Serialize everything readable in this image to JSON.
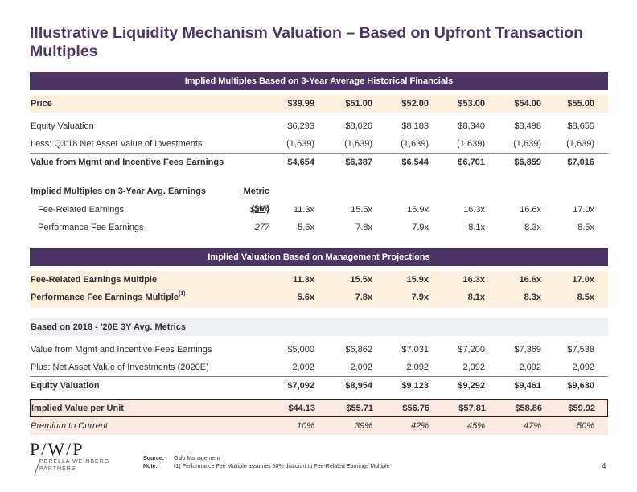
{
  "title": "Illustrative Liquidity Mechanism Valuation – Based on Upfront Transaction Multiples",
  "section1": {
    "band": "Implied Multiples Based on 3-Year Average Historical Financials",
    "price": {
      "label": "Price",
      "values": [
        "$39.99",
        "$51.00",
        "$52.00",
        "$53.00",
        "$54.00",
        "$55.00"
      ]
    },
    "equity": {
      "label": "Equity Valuation",
      "values": [
        "$6,293",
        "$8,026",
        "$8,183",
        "$8,340",
        "$8,498",
        "$8,655"
      ]
    },
    "nav": {
      "label": "Less: Q3'18 Net Asset Value of Investments",
      "values": [
        "(1,639)",
        "(1,639)",
        "(1,639)",
        "(1,639)",
        "(1,639)",
        "(1,639)"
      ]
    },
    "fees": {
      "label": "Value from Mgmt and Incentive Fees Earnings",
      "values": [
        "$4,654",
        "$6,387",
        "$6,544",
        "$6,701",
        "$6,859",
        "$7,016"
      ]
    },
    "multiples_header": {
      "label": "Implied Multiples on 3-Year Avg. Earnings",
      "metric": "Metric ($M)"
    },
    "fre": {
      "label": "Fee-Related Earnings",
      "metric": "$274",
      "values": [
        "11.3x",
        "15.5x",
        "15.9x",
        "16.3x",
        "16.6x",
        "17.0x"
      ]
    },
    "pfe": {
      "label": "Performance Fee Earnings",
      "metric": "277",
      "values": [
        "5.6x",
        "7.8x",
        "7.9x",
        "8.1x",
        "8.3x",
        "8.5x"
      ]
    }
  },
  "section2": {
    "band": "Implied Valuation Based on Management Projections",
    "fre_mult": {
      "label": "Fee-Related Earnings Multiple",
      "values": [
        "11.3x",
        "15.5x",
        "15.9x",
        "16.3x",
        "16.6x",
        "17.0x"
      ]
    },
    "pfe_mult": {
      "label": "Performance Fee Earnings Multiple",
      "sup": "(1)",
      "values": [
        "5.6x",
        "7.8x",
        "7.9x",
        "8.1x",
        "8.3x",
        "8.5x"
      ]
    },
    "basis": {
      "label": "Based on 2018 - '20E 3Y Avg. Metrics"
    },
    "fees": {
      "label": "Value from Mgmt and Incentive Fees Earnings",
      "values": [
        "$5,000",
        "$6,862",
        "$7,031",
        "$7,200",
        "$7,369",
        "$7,538"
      ]
    },
    "nav": {
      "label": "Plus: Net Asset Value of Investments (2020E)",
      "values": [
        "2,092",
        "2,092",
        "2,092",
        "2,092",
        "2,092",
        "2,092"
      ]
    },
    "equity": {
      "label": "Equity Valuation",
      "values": [
        "$7,092",
        "$8,954",
        "$9,123",
        "$9,292",
        "$9,461",
        "$9,630"
      ]
    },
    "per_unit": {
      "label": "Implied Value per Unit",
      "values": [
        "$44.13",
        "$55.71",
        "$56.76",
        "$57.81",
        "$58.86",
        "$59.92"
      ]
    },
    "premium": {
      "label": "Premium to Current",
      "values": [
        "10%",
        "39%",
        "42%",
        "45%",
        "47%",
        "50%"
      ]
    }
  },
  "logo": {
    "mark": "P/W/P",
    "line1": "PERELLA WEINBERG",
    "line2": "PARTNERS"
  },
  "footnotes": {
    "source_key": "Source:",
    "source_text": "Oslo Management",
    "note_key": "Note:",
    "note_text": "(1)  Performance Fee Multiple assumes 50% discount to Fee-Related Earnings Multiple"
  },
  "page_number": "4"
}
